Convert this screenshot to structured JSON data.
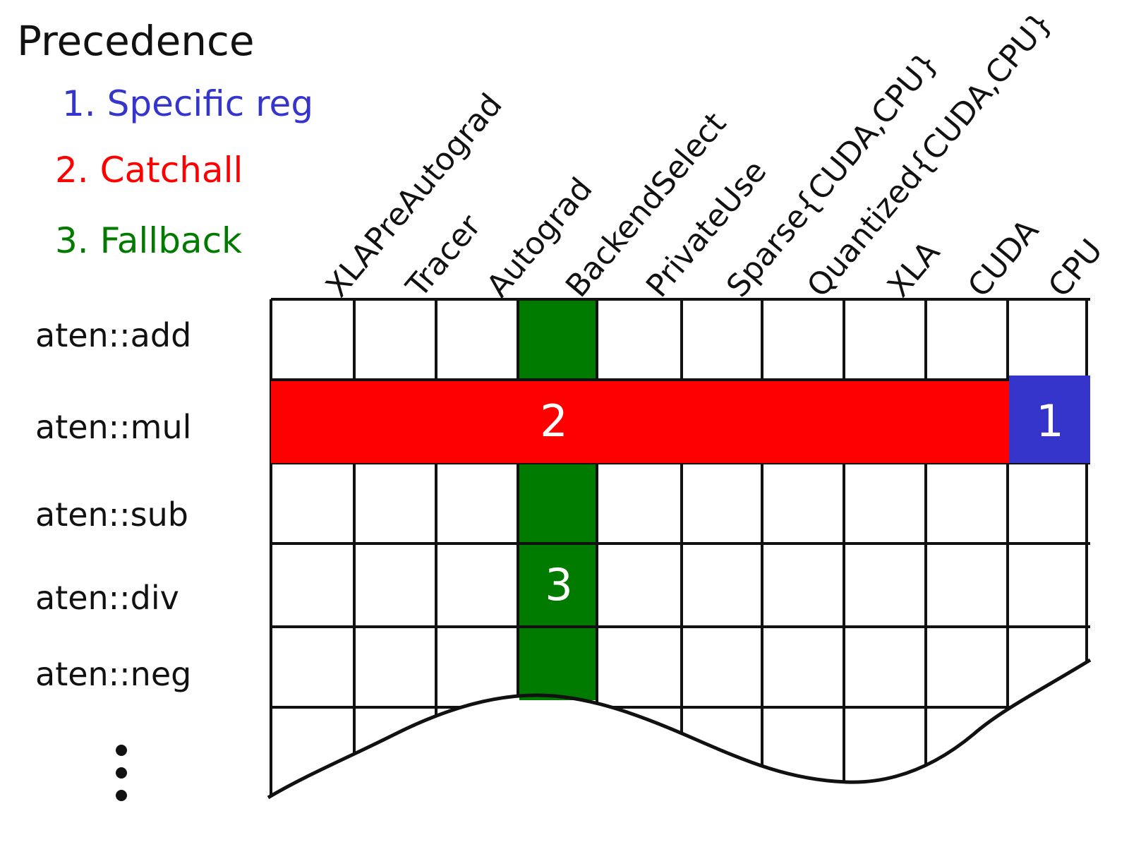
{
  "legend": {
    "title": "Precedence",
    "items": [
      {
        "key": "specific",
        "label": "1. Specific reg",
        "color": "#3535cc"
      },
      {
        "key": "catchall",
        "label": "2. Catchall",
        "color": "#ff0000"
      },
      {
        "key": "fallback",
        "label": "3. Fallback",
        "color": "#007b00"
      }
    ]
  },
  "columns": [
    "XLAPreAutograd",
    "Tracer",
    "Autograd",
    "BackendSelect",
    "PrivateUse",
    "Sparse{CUDA,CPU}",
    "Quantized{CUDA,CPU}",
    "XLA",
    "CUDA",
    "CPU"
  ],
  "rows": [
    "aten::add",
    "aten::mul",
    "aten::sub",
    "aten::div",
    "aten::neg"
  ],
  "markers": {
    "specific": "1",
    "catchall": "2",
    "fallback": "3"
  },
  "colors": {
    "specific": "#3535cc",
    "catchall": "#ff0000",
    "fallback": "#007b00",
    "grid": "#111111"
  }
}
